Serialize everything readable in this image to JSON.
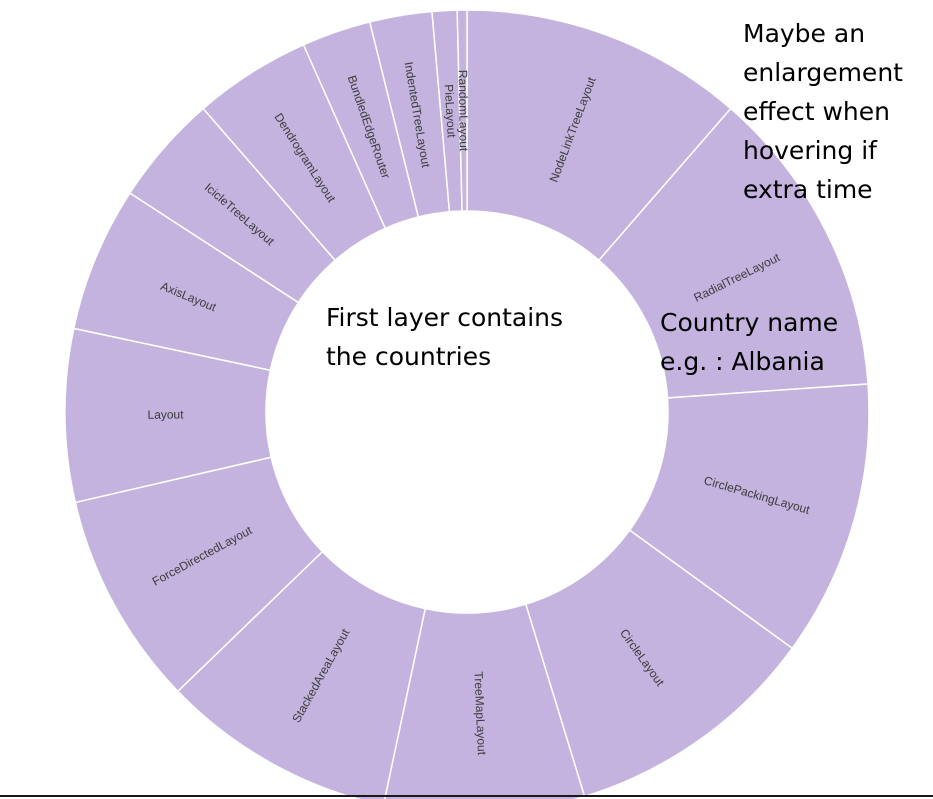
{
  "chart_data": {
    "type": "sunburst",
    "ring": "outer",
    "segment_color": "#c4b3de",
    "separator_color": "#ffffff",
    "label_color": "#3c3c3c",
    "segments": [
      {
        "label": "NodeLinkTreeLayout",
        "start_deg": 0,
        "end_deg": 41
      },
      {
        "label": "RadialTreeLayout",
        "start_deg": 41,
        "end_deg": 86
      },
      {
        "label": "CirclePackingLayout",
        "start_deg": 86,
        "end_deg": 126
      },
      {
        "label": "CircleLayout",
        "start_deg": 126,
        "end_deg": 163
      },
      {
        "label": "TreeMapLayout",
        "start_deg": 163,
        "end_deg": 192
      },
      {
        "label": "StackedAreaLayout",
        "start_deg": 192,
        "end_deg": 226
      },
      {
        "label": "ForceDirectedLayout",
        "start_deg": 226,
        "end_deg": 257
      },
      {
        "label": "Layout",
        "start_deg": 257,
        "end_deg": 282
      },
      {
        "label": "AxisLayout",
        "start_deg": 282,
        "end_deg": 303
      },
      {
        "label": "IcicleTreeLayout",
        "start_deg": 303,
        "end_deg": 319
      },
      {
        "label": "DendrogramLayout",
        "start_deg": 319,
        "end_deg": 336
      },
      {
        "label": "BundledEdgeRouter",
        "start_deg": 336,
        "end_deg": 346
      },
      {
        "label": "IndentedTreeLayout",
        "start_deg": 346,
        "end_deg": 355
      },
      {
        "label": "PieLayout",
        "start_deg": 355,
        "end_deg": 358.6
      },
      {
        "label": "RandomLayout",
        "start_deg": 358.6,
        "end_deg": 360
      }
    ]
  },
  "annotations": {
    "enlarge": [
      "Maybe an",
      "enlargement",
      "effect when",
      "hovering if",
      "extra time"
    ],
    "center": [
      "First layer contains",
      "the countries"
    ],
    "country": [
      "Country name",
      "e.g. : Albania"
    ]
  }
}
